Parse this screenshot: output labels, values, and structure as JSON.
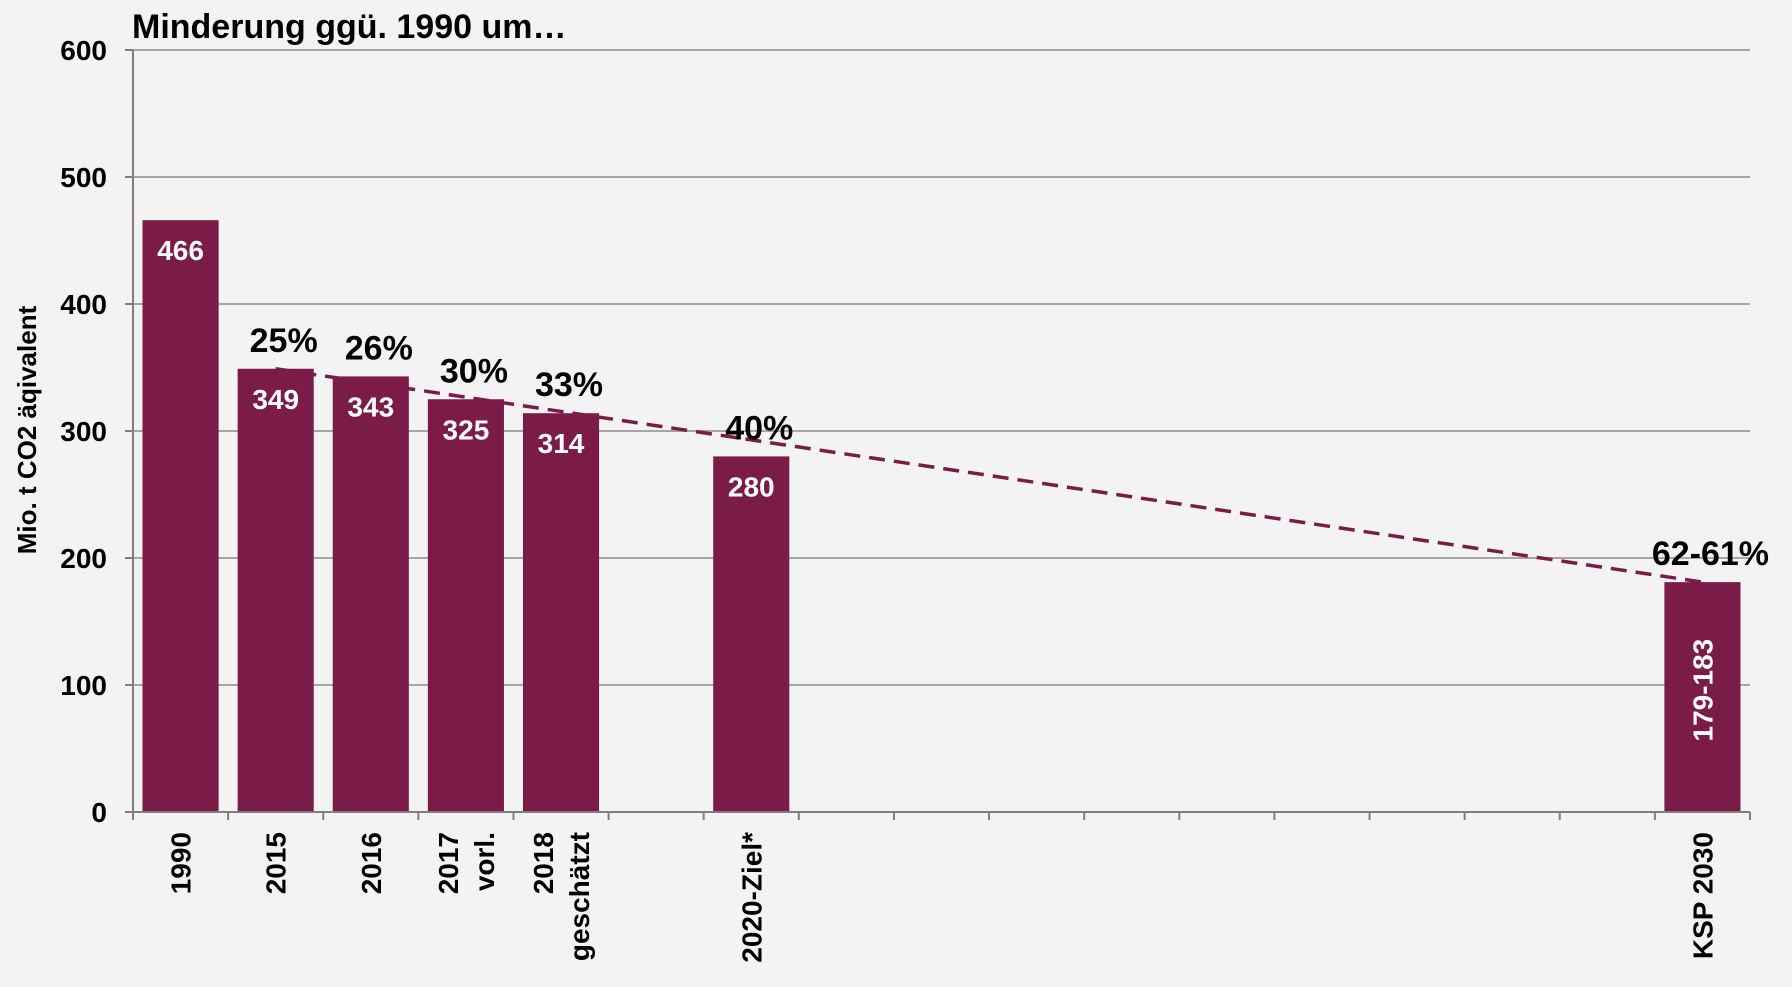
{
  "chart_data": {
    "type": "bar",
    "title": "Minderung ggü. 1990 um…",
    "xlabel": "",
    "ylabel": "Mio. t CO2 äqivalent",
    "ylim": [
      0,
      600
    ],
    "yticks": [
      0,
      100,
      200,
      300,
      400,
      500,
      600
    ],
    "grid": true,
    "categories": [
      "1990",
      "2015",
      "2016",
      "2017\nvorl.",
      "2018\ngeschätzt",
      "",
      "2020-Ziel*",
      "",
      "",
      "",
      "",
      "",
      "",
      "",
      "",
      "",
      "KSP 2030"
    ],
    "values": [
      466,
      349,
      343,
      325,
      314,
      null,
      280,
      null,
      null,
      null,
      null,
      null,
      null,
      null,
      null,
      null,
      181
    ],
    "data_labels": [
      "466",
      "349",
      "343",
      "325",
      "314",
      "",
      "280",
      "",
      "",
      "",
      "",
      "",
      "",
      "",
      "",
      "",
      "179-183"
    ],
    "reduction_labels": [
      "",
      "25%",
      "26%",
      "30%",
      "33%",
      "",
      "40%",
      "",
      "",
      "",
      "",
      "",
      "",
      "",
      "",
      "",
      "62-61%"
    ],
    "trend_line": {
      "from": {
        "category_index": 1,
        "value": 349
      },
      "to": {
        "category_index": 16,
        "value": 181
      },
      "style": "dashed"
    },
    "colors": {
      "bar": "#7b1c48",
      "trend": "#7b1c48",
      "grid": "#a6a6a6",
      "axis": "#7f7f7f",
      "text": "#000000",
      "data_label": "#ffffff",
      "background": "#f3f3f3"
    }
  }
}
